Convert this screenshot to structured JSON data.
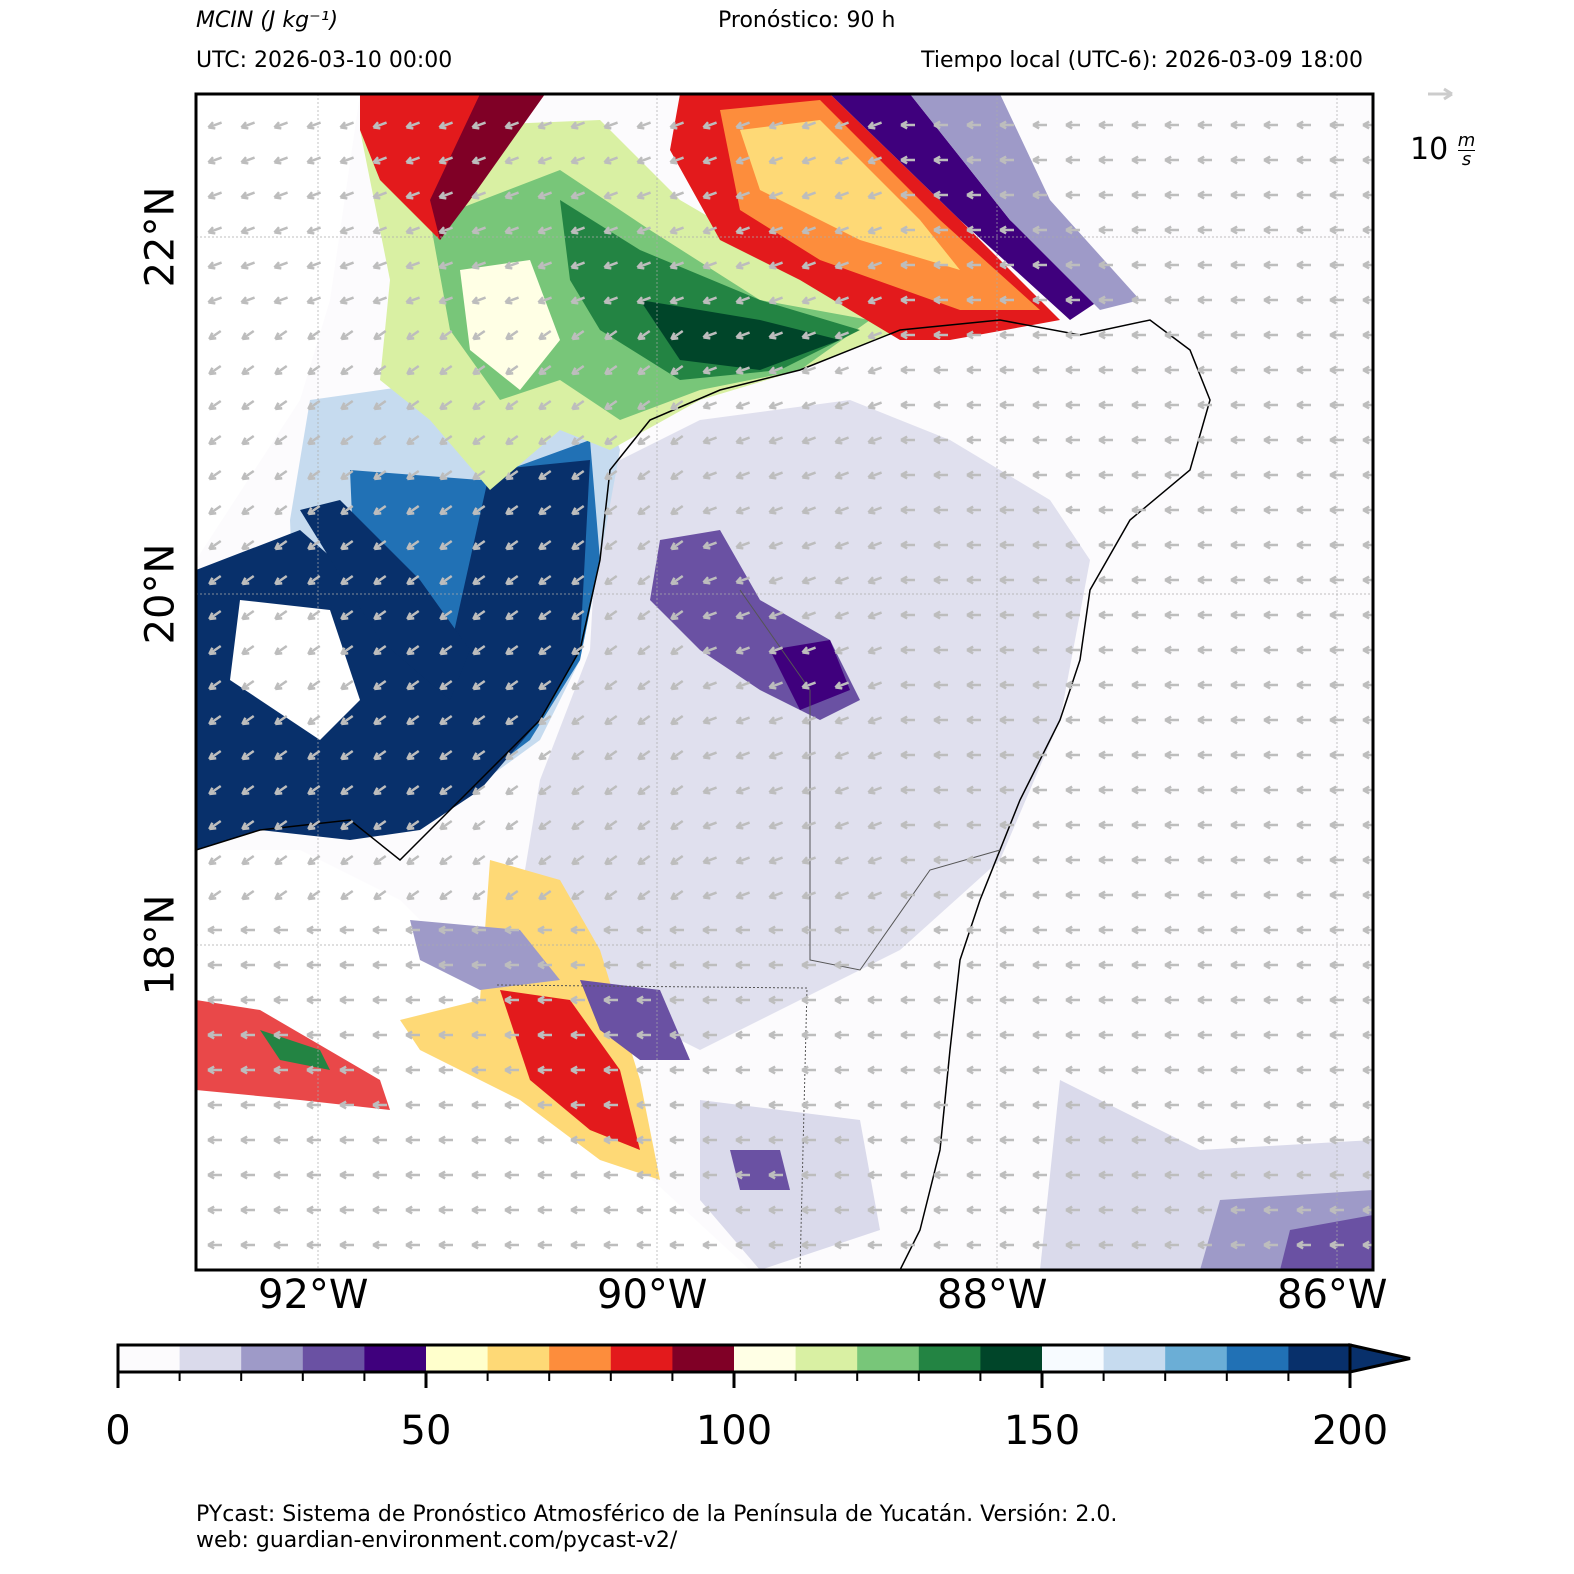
{
  "header": {
    "variable": "MCIN",
    "units": "(J kg⁻¹)",
    "forecast": "Pronóstico: 90 h",
    "utc": "UTC:  2026-03-10 00:00",
    "local_time": "Tiempo local (UTC-6): 2026-03-09 18:00"
  },
  "wind_key": {
    "value": "10",
    "units_num": "m",
    "units_den": "s"
  },
  "axes": {
    "lon_labels": [
      "92°W",
      "90°W",
      "88°W",
      "86°W"
    ],
    "lat_labels": [
      "22°N",
      "20°N",
      "18°N"
    ]
  },
  "colorbar": {
    "ticks": [
      "0",
      "50",
      "100",
      "150",
      "200"
    ],
    "min": 0,
    "max": 200,
    "step": 10,
    "extend": "max",
    "colors": [
      "#fcfbfd",
      "#dadaeb",
      "#9e9ac8",
      "#6a51a3",
      "#3f007d",
      "#ffffcc",
      "#fed976",
      "#fd8d3c",
      "#e31a1c",
      "#800026",
      "#ffffe5",
      "#d9f0a3",
      "#78c679",
      "#238443",
      "#004529",
      "#f7fbff",
      "#c6dbef",
      "#6baed6",
      "#2171b5",
      "#08306b"
    ]
  },
  "footer": {
    "line1": "PYcast: Sistema de Pronóstico Atmosférico de la Península de Yucatán. Versión: 2.0.",
    "line2": "web: guardian-environment.com/pycast-v2/"
  }
}
